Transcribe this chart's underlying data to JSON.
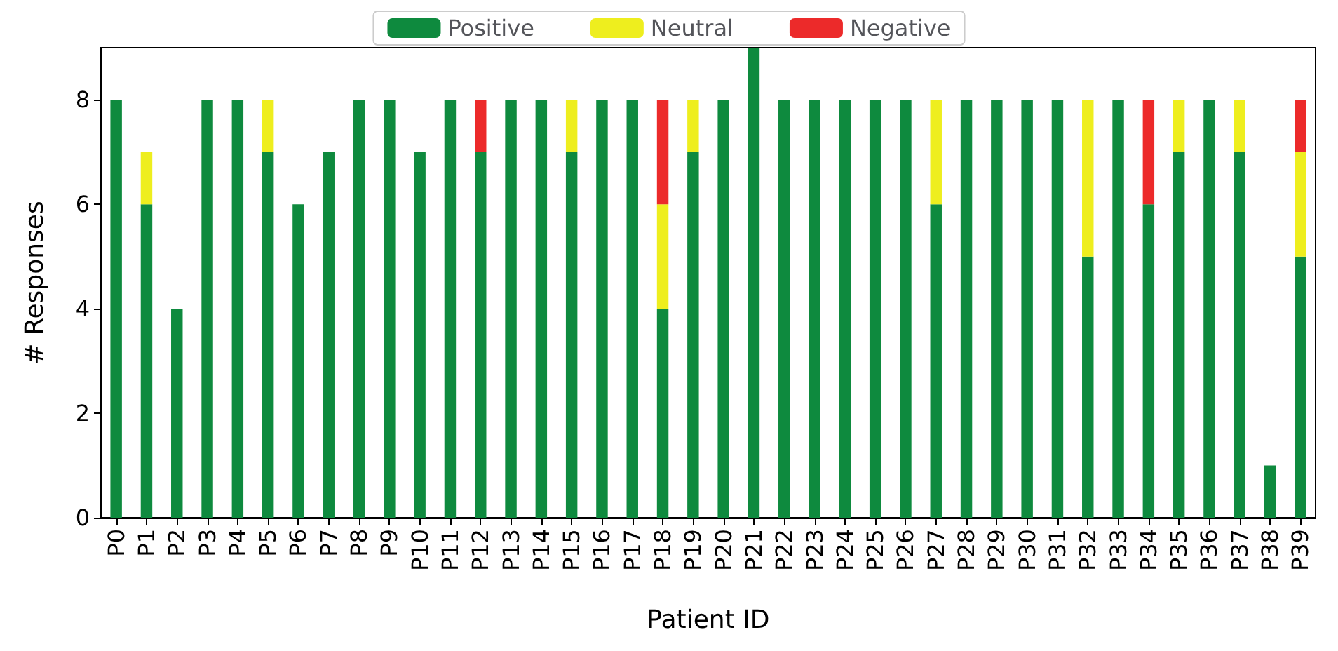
{
  "chart_data": {
    "type": "bar",
    "stacked": true,
    "xlabel": "Patient ID",
    "ylabel": "# Responses",
    "categories": [
      "P0",
      "P1",
      "P2",
      "P3",
      "P4",
      "P5",
      "P6",
      "P7",
      "P8",
      "P9",
      "P10",
      "P11",
      "P12",
      "P13",
      "P14",
      "P15",
      "P16",
      "P17",
      "P18",
      "P19",
      "P20",
      "P21",
      "P22",
      "P23",
      "P24",
      "P25",
      "P26",
      "P27",
      "P28",
      "P29",
      "P30",
      "P31",
      "P32",
      "P33",
      "P34",
      "P35",
      "P36",
      "P37",
      "P38",
      "P39"
    ],
    "series": [
      {
        "name": "Positive",
        "color": "#0e8a3e",
        "values": [
          8,
          6,
          4,
          8,
          8,
          7,
          6,
          7,
          8,
          8,
          7,
          8,
          7,
          8,
          8,
          7,
          8,
          8,
          4,
          7,
          8,
          9,
          8,
          8,
          8,
          8,
          8,
          6,
          8,
          8,
          8,
          8,
          5,
          8,
          6,
          7,
          8,
          7,
          1,
          5
        ]
      },
      {
        "name": "Neutral",
        "color": "#eeee1e",
        "values": [
          0,
          1,
          0,
          0,
          0,
          1,
          0,
          0,
          0,
          0,
          0,
          0,
          0,
          0,
          0,
          1,
          0,
          0,
          2,
          1,
          0,
          0,
          0,
          0,
          0,
          0,
          0,
          2,
          0,
          0,
          0,
          0,
          3,
          0,
          0,
          1,
          0,
          1,
          0,
          2
        ]
      },
      {
        "name": "Negative",
        "color": "#ec2a2a",
        "values": [
          0,
          0,
          0,
          0,
          0,
          0,
          0,
          0,
          0,
          0,
          0,
          0,
          1,
          0,
          0,
          0,
          0,
          0,
          2,
          0,
          0,
          0,
          0,
          0,
          0,
          0,
          0,
          0,
          0,
          0,
          0,
          0,
          0,
          0,
          2,
          0,
          0,
          0,
          0,
          1
        ]
      }
    ],
    "ylim": [
      0,
      9
    ],
    "yticks": [
      0,
      2,
      4,
      6,
      8
    ],
    "grid": false,
    "legend": "top"
  }
}
